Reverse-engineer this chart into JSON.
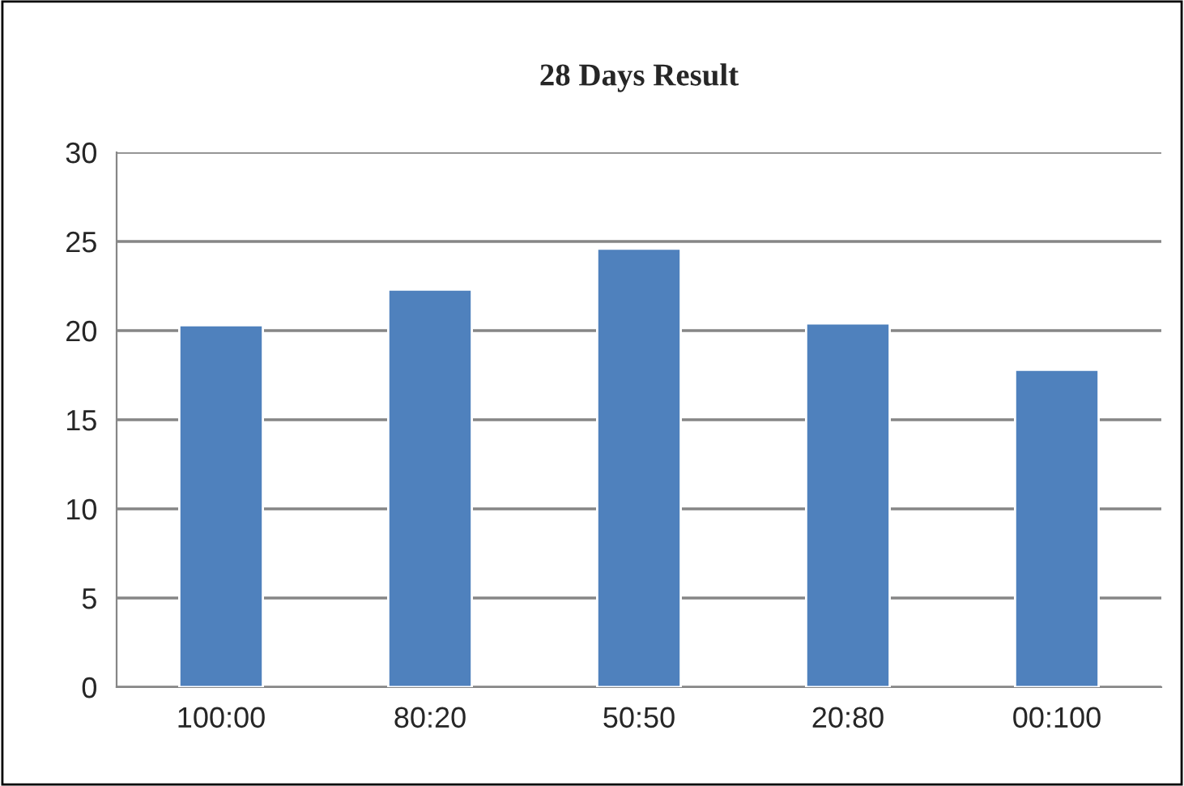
{
  "chart_data": {
    "type": "bar",
    "title": "28 Days Result",
    "categories": [
      "100:00",
      "80:20",
      "50:50",
      "20:80",
      "00:100"
    ],
    "values": [
      20.3,
      22.3,
      24.6,
      20.4,
      17.8
    ],
    "color": "#4f81bd",
    "ylim": [
      0,
      30
    ],
    "yticks": [
      0,
      5,
      10,
      15,
      20,
      25,
      30
    ],
    "grid": "y"
  }
}
